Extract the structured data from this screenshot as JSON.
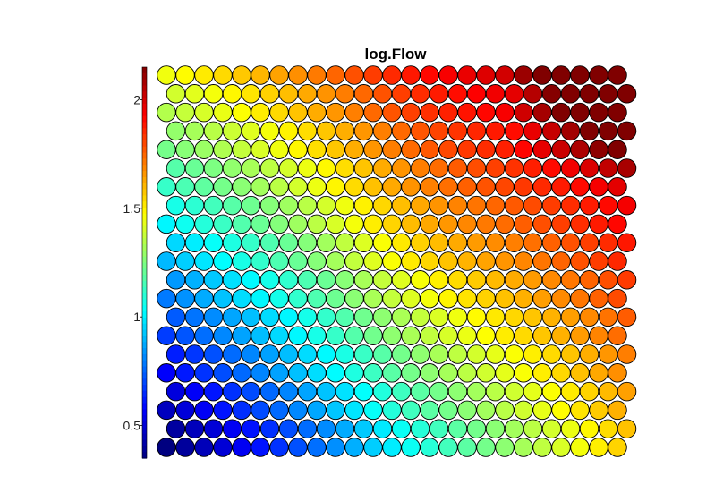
{
  "chart_data": {
    "type": "heatmap",
    "layout": "hexagonal",
    "title": "log.Flow",
    "grid": {
      "rows": 21,
      "cols": 25
    },
    "colorbar": {
      "range": [
        0.35,
        2.15
      ],
      "ticks": [
        0.5,
        1,
        1.5,
        2
      ],
      "tick_labels": [
        "0.5",
        "1",
        "1.5",
        "2"
      ],
      "colormap": "jet",
      "placement": "left"
    },
    "field": {
      "description_free": true,
      "corner_values": {
        "bottom_left": 0.35,
        "top_right": 2.15,
        "top_left": 1.45,
        "bottom_right": 1.55
      },
      "ridge_center_value": 1.5
    },
    "stroke_color": "#000000"
  }
}
